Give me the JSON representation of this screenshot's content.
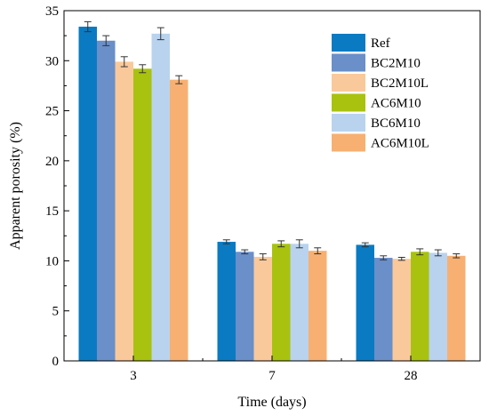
{
  "chart_data": {
    "type": "bar",
    "xlabel": "Time (days)",
    "ylabel": "Apparent porosity (%)",
    "categories": [
      "3",
      "7",
      "28"
    ],
    "ylim": [
      0,
      35
    ],
    "yticks": [
      0,
      5,
      10,
      15,
      20,
      25,
      30,
      35
    ],
    "grid": false,
    "legend_position": "top-right",
    "error_bars": true,
    "series": [
      {
        "name": "Ref",
        "color": "#0a7bc2",
        "values": [
          33.4,
          11.9,
          11.6
        ],
        "errors": [
          0.5,
          0.2,
          0.2
        ]
      },
      {
        "name": "BC2M10",
        "color": "#6a8fc9",
        "values": [
          32.0,
          10.9,
          10.3
        ],
        "errors": [
          0.5,
          0.2,
          0.2
        ]
      },
      {
        "name": "BC2M10L",
        "color": "#fac99b",
        "values": [
          29.9,
          10.4,
          10.2
        ],
        "errors": [
          0.5,
          0.3,
          0.15
        ]
      },
      {
        "name": "AC6M10",
        "color": "#a8c20f",
        "values": [
          29.2,
          11.7,
          10.9
        ],
        "errors": [
          0.4,
          0.3,
          0.3
        ]
      },
      {
        "name": "BC6M10",
        "color": "#b9d3ee",
        "values": [
          32.7,
          11.7,
          10.8
        ],
        "errors": [
          0.6,
          0.4,
          0.3
        ]
      },
      {
        "name": "AC6M10L",
        "color": "#f7b072",
        "values": [
          28.1,
          11.0,
          10.5
        ],
        "errors": [
          0.4,
          0.3,
          0.2
        ]
      }
    ]
  }
}
